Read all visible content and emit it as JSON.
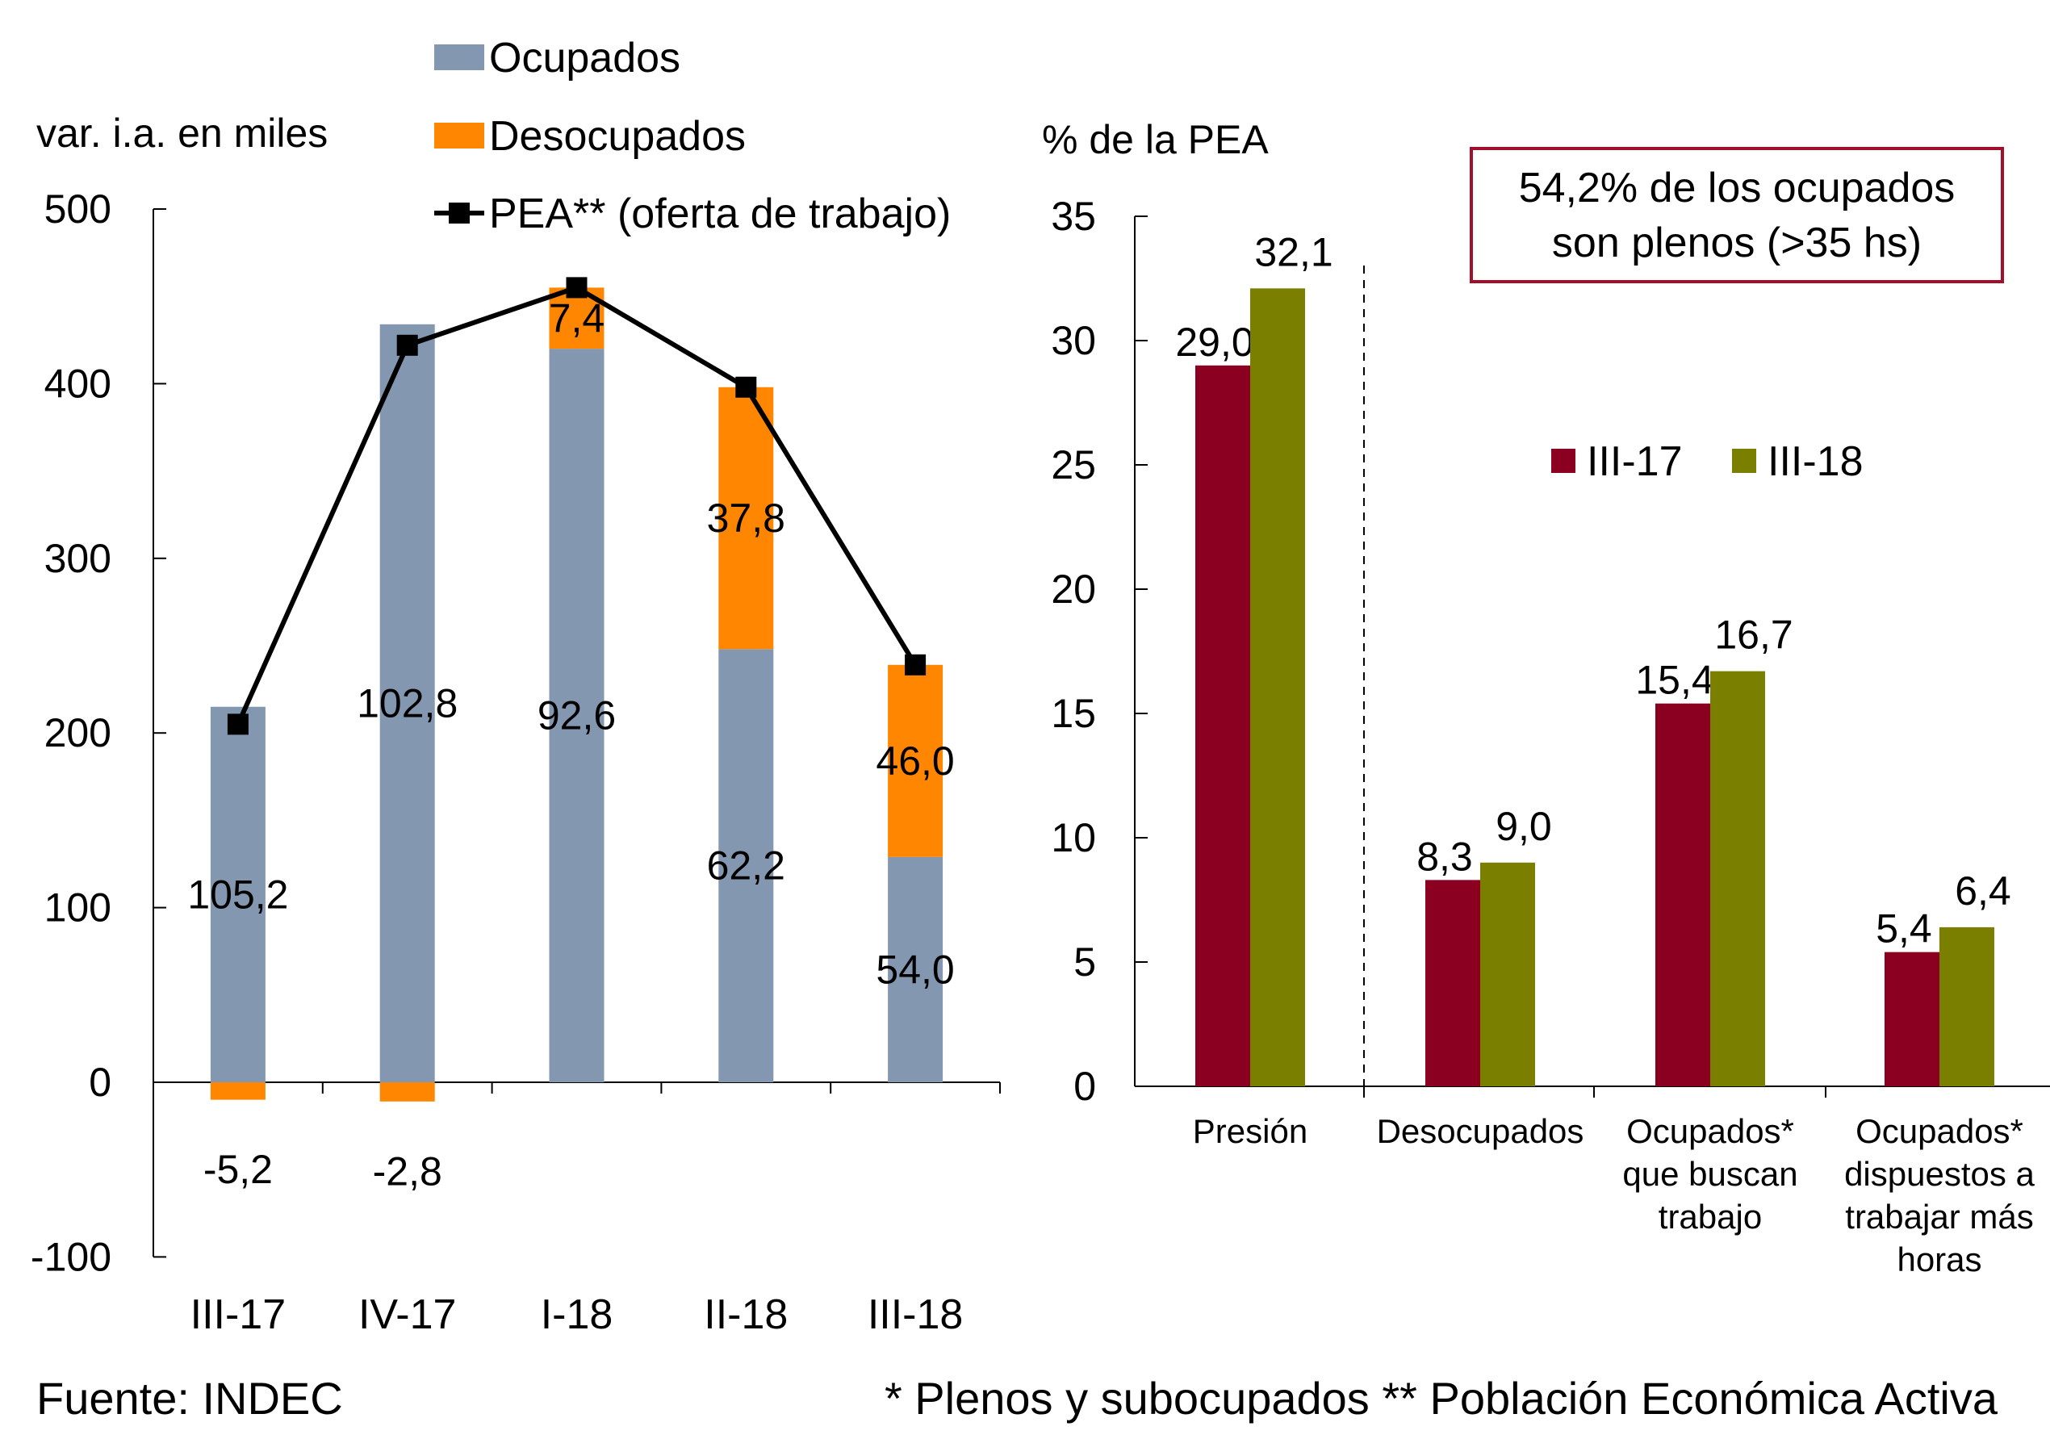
{
  "colors": {
    "ocupados": "#8497B0",
    "desocupados": "#FF8600",
    "pea": "#000000",
    "iii17": "#8B0020",
    "iii18": "#7A7F00",
    "box_border": "#A0102A"
  },
  "footer": {
    "source": "Fuente: INDEC",
    "notes": "* Plenos y subocupados  ** Población Económica Activa"
  },
  "chart_data": [
    {
      "type": "bar",
      "stacked": true,
      "ylabel": "var. i.a. en miles",
      "ylim": [
        -100,
        500
      ],
      "yticks": [
        "500",
        "400",
        "300",
        "200",
        "100",
        "0",
        "-100"
      ],
      "categories": [
        "III-17",
        "IV-17",
        "I-18",
        "II-18",
        "III-18"
      ],
      "series": [
        {
          "name": "Ocupados",
          "values": [
            215,
            434,
            420,
            248,
            129
          ],
          "labels": [
            "105,2",
            "102,8",
            "92,6",
            "62,2",
            "54,0"
          ]
        },
        {
          "name": "Desocupados",
          "values": [
            -10,
            -11,
            35,
            150,
            110
          ],
          "labels": [
            "-5,2",
            "-2,8",
            "7,4",
            "37,8",
            "46,0"
          ]
        },
        {
          "name": "PEA** (oferta de trabajo)",
          "type": "line",
          "values": [
            205,
            422,
            455,
            398,
            239
          ]
        }
      ],
      "legend": "top",
      "grid": false
    },
    {
      "type": "bar",
      "ylabel": "% de la PEA",
      "ylim": [
        0,
        35
      ],
      "yticks": [
        "35",
        "30",
        "25",
        "20",
        "15",
        "10",
        "5",
        "0"
      ],
      "categories": [
        [
          "Presión"
        ],
        [
          "Desocupados"
        ],
        [
          "Ocupados*",
          "que buscan",
          "trabajo"
        ],
        [
          "Ocupados*",
          "dispuestos a",
          "trabajar más",
          "horas"
        ]
      ],
      "series": [
        {
          "name": "III-17",
          "values": [
            29.0,
            8.3,
            15.4,
            5.4
          ],
          "labels": [
            "29,0",
            "8,3",
            "15,4",
            "5,4"
          ]
        },
        {
          "name": "III-18",
          "values": [
            32.1,
            9.0,
            16.7,
            6.4
          ],
          "labels": [
            "32,1",
            "9,0",
            "16,7",
            "6,4"
          ]
        }
      ],
      "annotation": [
        "54,2% de los ocupados",
        "son plenos (>35 hs)"
      ],
      "legend": "right-middle",
      "grid": false
    }
  ]
}
